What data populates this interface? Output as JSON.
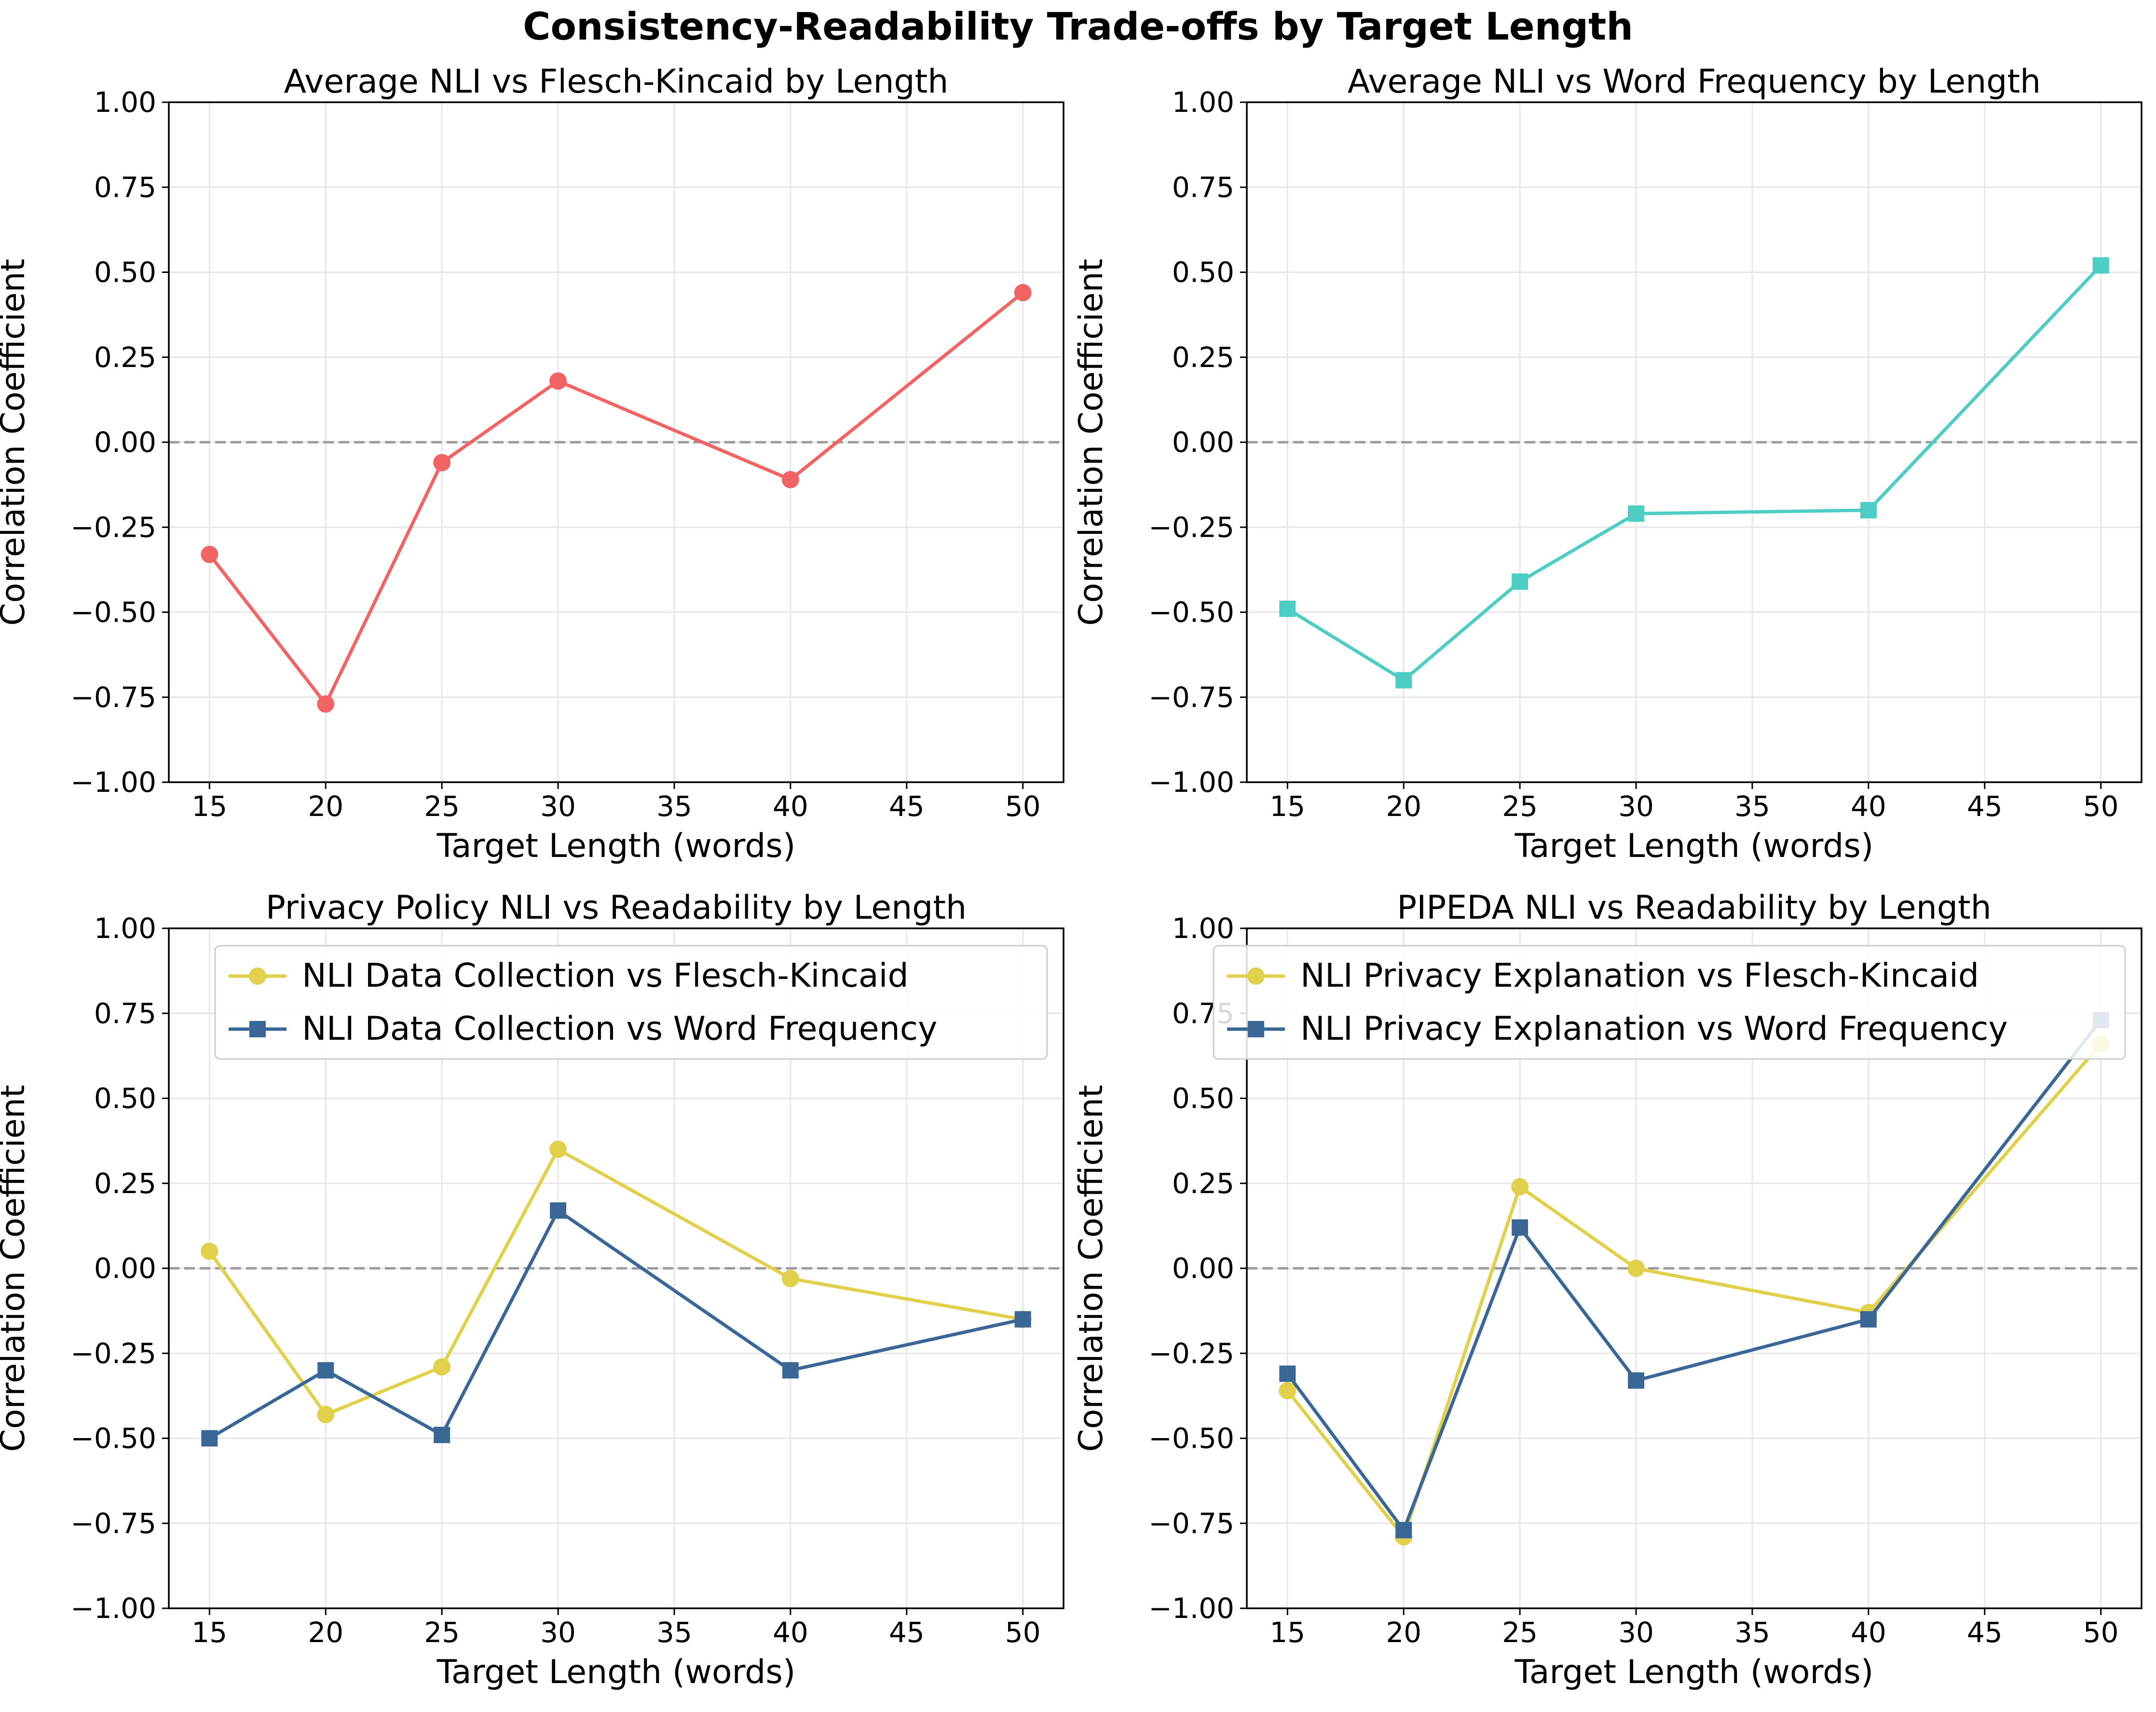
{
  "figure": {
    "title": "Consistency-Readability Trade-offs by Target Length"
  },
  "colors": {
    "red": "#f26463",
    "teal": "#4ecdc4",
    "yellow": "#e1d04b",
    "blue": "#3b6796",
    "zero_line": "#9a9a9a",
    "grid": "#e6e6e6"
  },
  "chart_data": [
    {
      "type": "line",
      "title": "Average NLI vs Flesch-Kincaid by Length",
      "xlabel": "Target Length (words)",
      "ylabel": "Correlation Coefficient",
      "xlim": [
        13.25,
        51.75
      ],
      "ylim": [
        -1.0,
        1.0
      ],
      "xticks": [
        15,
        20,
        25,
        30,
        35,
        40,
        45,
        50
      ],
      "yticks": [
        -1.0,
        -0.75,
        -0.5,
        -0.25,
        0.0,
        0.25,
        0.5,
        0.75,
        1.0
      ],
      "grid": true,
      "reference_line": 0,
      "legend": null,
      "x": [
        15,
        20,
        25,
        30,
        40,
        50
      ],
      "series": [
        {
          "values": [
            -0.33,
            -0.77,
            -0.06,
            0.18,
            -0.11,
            0.44
          ],
          "color": "#f26463",
          "marker": "circle"
        }
      ]
    },
    {
      "type": "line",
      "title": "Average NLI vs Word Frequency by Length",
      "xlabel": "Target Length (words)",
      "ylabel": "Correlation Coefficient",
      "xlim": [
        13.25,
        51.75
      ],
      "ylim": [
        -1.0,
        1.0
      ],
      "xticks": [
        15,
        20,
        25,
        30,
        35,
        40,
        45,
        50
      ],
      "yticks": [
        -1.0,
        -0.75,
        -0.5,
        -0.25,
        0.0,
        0.25,
        0.5,
        0.75,
        1.0
      ],
      "grid": true,
      "reference_line": 0,
      "legend": null,
      "x": [
        15,
        20,
        25,
        30,
        40,
        50
      ],
      "series": [
        {
          "values": [
            -0.49,
            -0.7,
            -0.41,
            -0.21,
            -0.2,
            0.52
          ],
          "color": "#4ecdc4",
          "marker": "square"
        }
      ]
    },
    {
      "type": "line",
      "title": "Privacy Policy NLI vs Readability by Length",
      "xlabel": "Target Length (words)",
      "ylabel": "Correlation Coefficient",
      "xlim": [
        13.25,
        51.75
      ],
      "ylim": [
        -1.0,
        1.0
      ],
      "xticks": [
        15,
        20,
        25,
        30,
        35,
        40,
        45,
        50
      ],
      "yticks": [
        -1.0,
        -0.75,
        -0.5,
        -0.25,
        0.0,
        0.25,
        0.5,
        0.75,
        1.0
      ],
      "grid": true,
      "reference_line": 0,
      "legend": "upper-right",
      "x": [
        15,
        20,
        25,
        30,
        40,
        50
      ],
      "series": [
        {
          "name": "NLI Data Collection vs Flesch-Kincaid",
          "values": [
            0.05,
            -0.43,
            -0.29,
            0.35,
            -0.03,
            -0.15
          ],
          "color": "#e1d04b",
          "marker": "circle"
        },
        {
          "name": "NLI Data Collection vs Word Frequency",
          "values": [
            -0.5,
            -0.3,
            -0.49,
            0.17,
            -0.3,
            -0.15
          ],
          "color": "#3b6796",
          "marker": "square"
        }
      ]
    },
    {
      "type": "line",
      "title": "PIPEDA NLI vs Readability by Length",
      "xlabel": "Target Length (words)",
      "ylabel": "Correlation Coefficient",
      "xlim": [
        13.25,
        51.75
      ],
      "ylim": [
        -1.0,
        1.0
      ],
      "xticks": [
        15,
        20,
        25,
        30,
        35,
        40,
        45,
        50
      ],
      "yticks": [
        -1.0,
        -0.75,
        -0.5,
        -0.25,
        0.0,
        0.25,
        0.5,
        0.75,
        1.0
      ],
      "grid": true,
      "reference_line": 0,
      "legend": "upper-right",
      "x": [
        15,
        20,
        25,
        30,
        40,
        50
      ],
      "series": [
        {
          "name": "NLI Privacy Explanation vs Flesch-Kincaid",
          "values": [
            -0.36,
            -0.79,
            0.24,
            0.0,
            -0.13,
            0.66
          ],
          "color": "#e1d04b",
          "marker": "circle"
        },
        {
          "name": "NLI Privacy Explanation vs Word Frequency",
          "values": [
            -0.31,
            -0.77,
            0.12,
            -0.33,
            -0.15,
            0.73
          ],
          "color": "#3b6796",
          "marker": "square"
        }
      ]
    }
  ]
}
